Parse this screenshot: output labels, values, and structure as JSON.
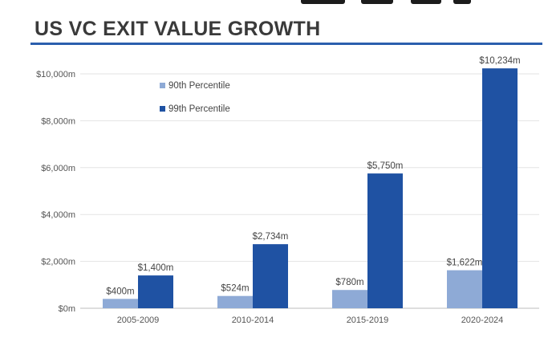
{
  "title": "US VC EXIT VALUE GROWTH",
  "colors": {
    "series1": "#8eaad6",
    "series2": "#1f52a3",
    "rule": "#2b5fad",
    "grid": "#e3e3e3"
  },
  "chart_data": {
    "type": "bar",
    "title": "US VC EXIT VALUE GROWTH",
    "xlabel": "",
    "ylabel": "",
    "categories": [
      "2005-2009",
      "2010-2014",
      "2015-2019",
      "2020-2024"
    ],
    "series": [
      {
        "name": "90th Percentile",
        "values": [
          400,
          524,
          780,
          1622
        ],
        "labels": [
          "$400m",
          "$524m",
          "$780m",
          "$1,622m"
        ]
      },
      {
        "name": "99th Percentile",
        "values": [
          1400,
          2734,
          5750,
          10234
        ],
        "labels": [
          "$1,400m",
          "$2,734m",
          "$5,750m",
          "$10,234m"
        ]
      }
    ],
    "ylim": [
      0,
      10000
    ],
    "yticks": [
      0,
      2000,
      4000,
      6000,
      8000,
      10000
    ],
    "ytick_labels": [
      "$0m",
      "$2,000m",
      "$4,000m",
      "$6,000m",
      "$8,000m",
      "$10,000m"
    ],
    "grid": true,
    "legend": "top-left"
  }
}
